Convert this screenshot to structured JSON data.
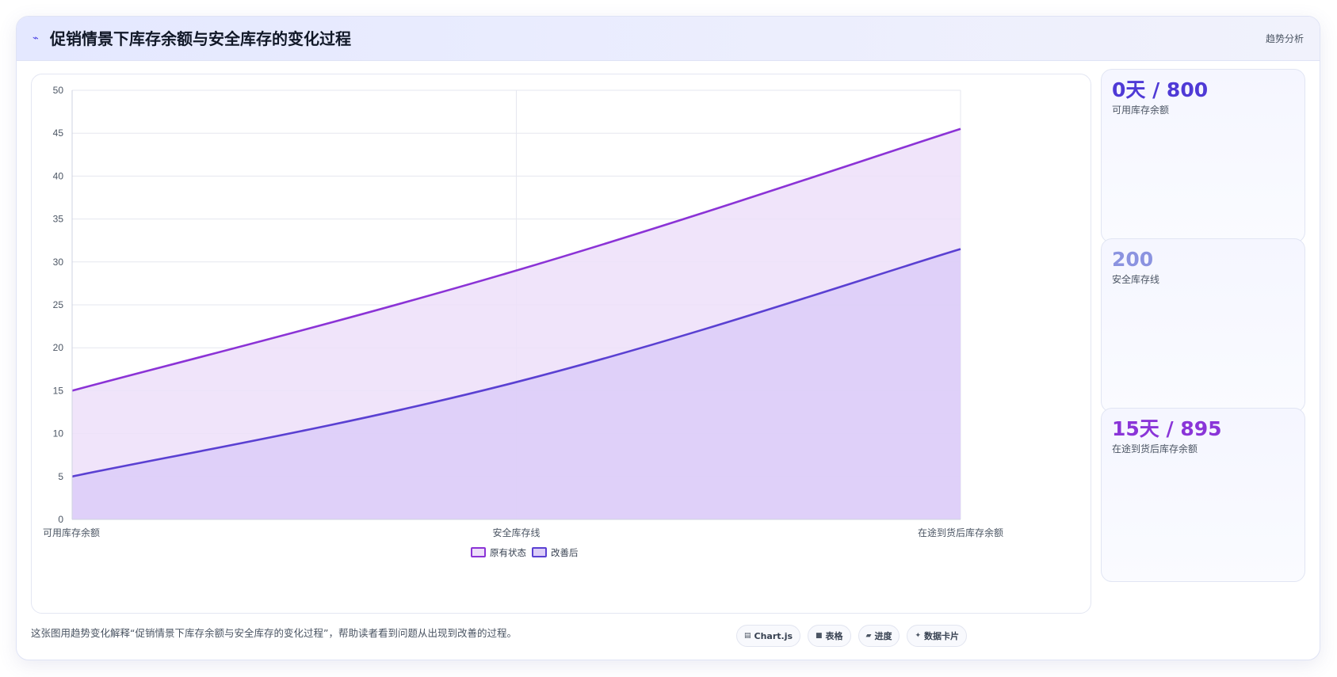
{
  "header": {
    "icon": "trend-icon",
    "title": "促销情景下库存余额与安全库存的变化过程",
    "tag": "趋势分析"
  },
  "chart_data": {
    "type": "area",
    "categories": [
      "可用库存余额",
      "安全库存线",
      "在途到货后库存余额"
    ],
    "series": [
      {
        "name": "原有状态",
        "values": [
          15,
          29,
          45.5
        ],
        "color": "#8b33d6",
        "fill": "#eddff9"
      },
      {
        "name": "改善后",
        "values": [
          5,
          16,
          31.5
        ],
        "color": "#5a40d2",
        "fill": "#dccdf8"
      }
    ],
    "ylim": [
      0,
      50
    ],
    "yticks": [
      0,
      5,
      10,
      15,
      20,
      25,
      30,
      35,
      40,
      45,
      50
    ],
    "grid": true,
    "legend_position": "bottom"
  },
  "stats": [
    {
      "value": "0天 / 800",
      "label": "可用库存余额",
      "color": "#4f3ad6"
    },
    {
      "value": "200",
      "label": "安全库存线",
      "color": "#8b93e0"
    },
    {
      "value": "15天 / 895",
      "label": "在途到货后库存余额",
      "color": "#8a35d8"
    }
  ],
  "footer": {
    "note": "这张图用趋势变化解释“促销情景下库存余额与安全库存的变化过程”，帮助读者看到问题从出现到改善的过程。",
    "chips": [
      {
        "icon": "chart-icon",
        "glyph": "▤",
        "label": "Chart.js"
      },
      {
        "icon": "table-icon",
        "glyph": "■",
        "label": "表格"
      },
      {
        "icon": "progress-icon",
        "glyph": "▰",
        "label": "进度"
      },
      {
        "icon": "sparkle-icon",
        "glyph": "✦",
        "label": "数据卡片"
      }
    ]
  }
}
